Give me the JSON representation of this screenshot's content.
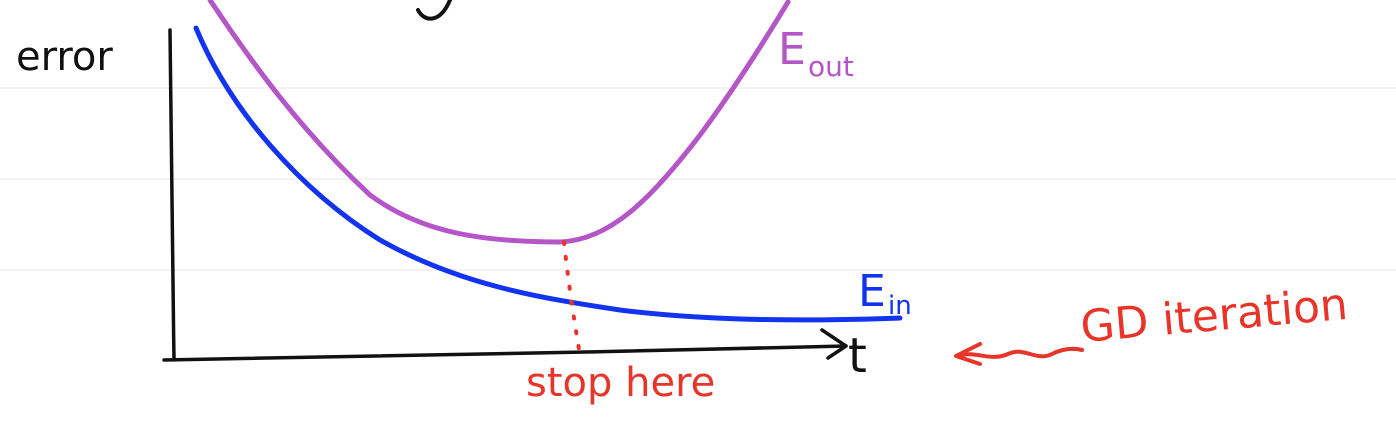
{
  "labels": {
    "y_axis": "error",
    "x_axis": "t",
    "e_out_main": "E",
    "e_out_sub": "out",
    "e_in_main": "E",
    "e_in_sub": "in",
    "stop": "stop here",
    "gd": "GD iteration"
  },
  "colors": {
    "axis": "#111111",
    "e_out": "#b455c8",
    "e_in": "#1233f0",
    "annotation": "#e8352a",
    "ruled_lines": "#efefef"
  }
}
